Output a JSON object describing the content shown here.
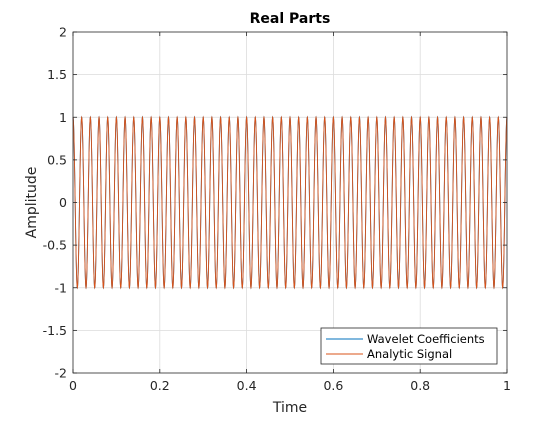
{
  "chart_data": {
    "type": "line",
    "title": "Real Parts",
    "xlabel": "Time",
    "ylabel": "Amplitude",
    "xlim": [
      0,
      1
    ],
    "ylim": [
      -2,
      2
    ],
    "xticks": [
      0,
      0.2,
      0.4,
      0.6,
      0.8,
      1
    ],
    "xtick_labels": [
      "0",
      "0.2",
      "0.4",
      "0.6",
      "0.8",
      "1"
    ],
    "yticks": [
      -2,
      -1.5,
      -1,
      -0.5,
      0,
      0.5,
      1,
      1.5,
      2
    ],
    "ytick_labels": [
      "-2",
      "-1.5",
      "-1",
      "-0.5",
      "0",
      "0.5",
      "1",
      "1.5",
      "2"
    ],
    "grid": true,
    "legend_position": "bottom-right",
    "series": [
      {
        "name": "Wavelet Coefficients",
        "color": "#0072BD",
        "function": "cos",
        "frequency": 50,
        "amplitude": 1
      },
      {
        "name": "Analytic Signal",
        "color": "#D95319",
        "function": "cos",
        "frequency": 50,
        "amplitude": 1
      }
    ]
  }
}
